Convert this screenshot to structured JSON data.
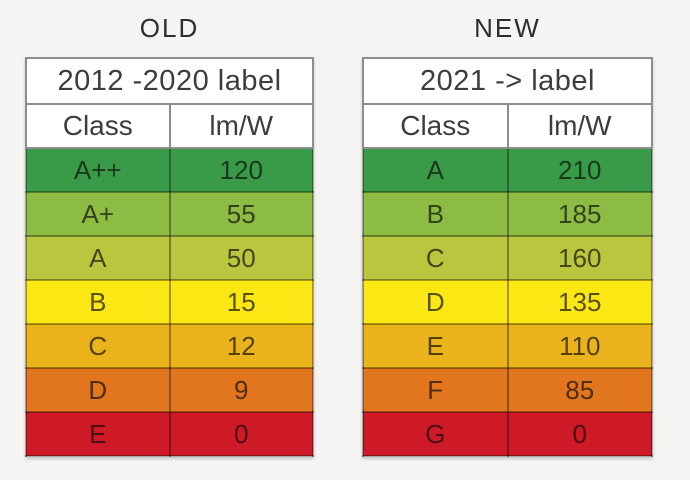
{
  "tables": [
    {
      "title": "OLD",
      "header": "2012 -2020 label",
      "columns": {
        "class": "Class",
        "efficacy": "lm/W"
      },
      "rows": [
        {
          "class": "A++",
          "value": "120",
          "color": "#399b47"
        },
        {
          "class": "A+",
          "value": "55",
          "color": "#8cbc43"
        },
        {
          "class": "A",
          "value": "50",
          "color": "#bac73e"
        },
        {
          "class": "B",
          "value": "15",
          "color": "#fbe714"
        },
        {
          "class": "C",
          "value": "12",
          "color": "#eab21b"
        },
        {
          "class": "D",
          "value": "9",
          "color": "#e2761f"
        },
        {
          "class": "E",
          "value": "0",
          "color": "#cd1a26"
        }
      ]
    },
    {
      "title": "NEW",
      "header": "2021 -> label",
      "columns": {
        "class": "Class",
        "efficacy": "lm/W"
      },
      "rows": [
        {
          "class": "A",
          "value": "210",
          "color": "#399b47"
        },
        {
          "class": "B",
          "value": "185",
          "color": "#8cbc43"
        },
        {
          "class": "C",
          "value": "160",
          "color": "#bac73e"
        },
        {
          "class": "D",
          "value": "135",
          "color": "#fbe714"
        },
        {
          "class": "E",
          "value": "110",
          "color": "#eab21b"
        },
        {
          "class": "F",
          "value": "85",
          "color": "#e2761f"
        },
        {
          "class": "G",
          "value": "0",
          "color": "#cd1a26"
        }
      ]
    }
  ],
  "chart_data": [
    {
      "type": "table",
      "title": "OLD",
      "subtitle": "2012 -2020 label",
      "columns": [
        "Class",
        "lm/W"
      ],
      "categories": [
        "A++",
        "A+",
        "A",
        "B",
        "C",
        "D",
        "E"
      ],
      "values": [
        120,
        55,
        50,
        15,
        12,
        9,
        0
      ],
      "row_colors": [
        "#399b47",
        "#8cbc43",
        "#bac73e",
        "#fbe714",
        "#eab21b",
        "#e2761f",
        "#cd1a26"
      ]
    },
    {
      "type": "table",
      "title": "NEW",
      "subtitle": "2021 -> label",
      "columns": [
        "Class",
        "lm/W"
      ],
      "categories": [
        "A",
        "B",
        "C",
        "D",
        "E",
        "F",
        "G"
      ],
      "values": [
        210,
        185,
        160,
        135,
        110,
        85,
        0
      ],
      "row_colors": [
        "#399b47",
        "#8cbc43",
        "#bac73e",
        "#fbe714",
        "#eab21b",
        "#e2761f",
        "#cd1a26"
      ]
    }
  ]
}
